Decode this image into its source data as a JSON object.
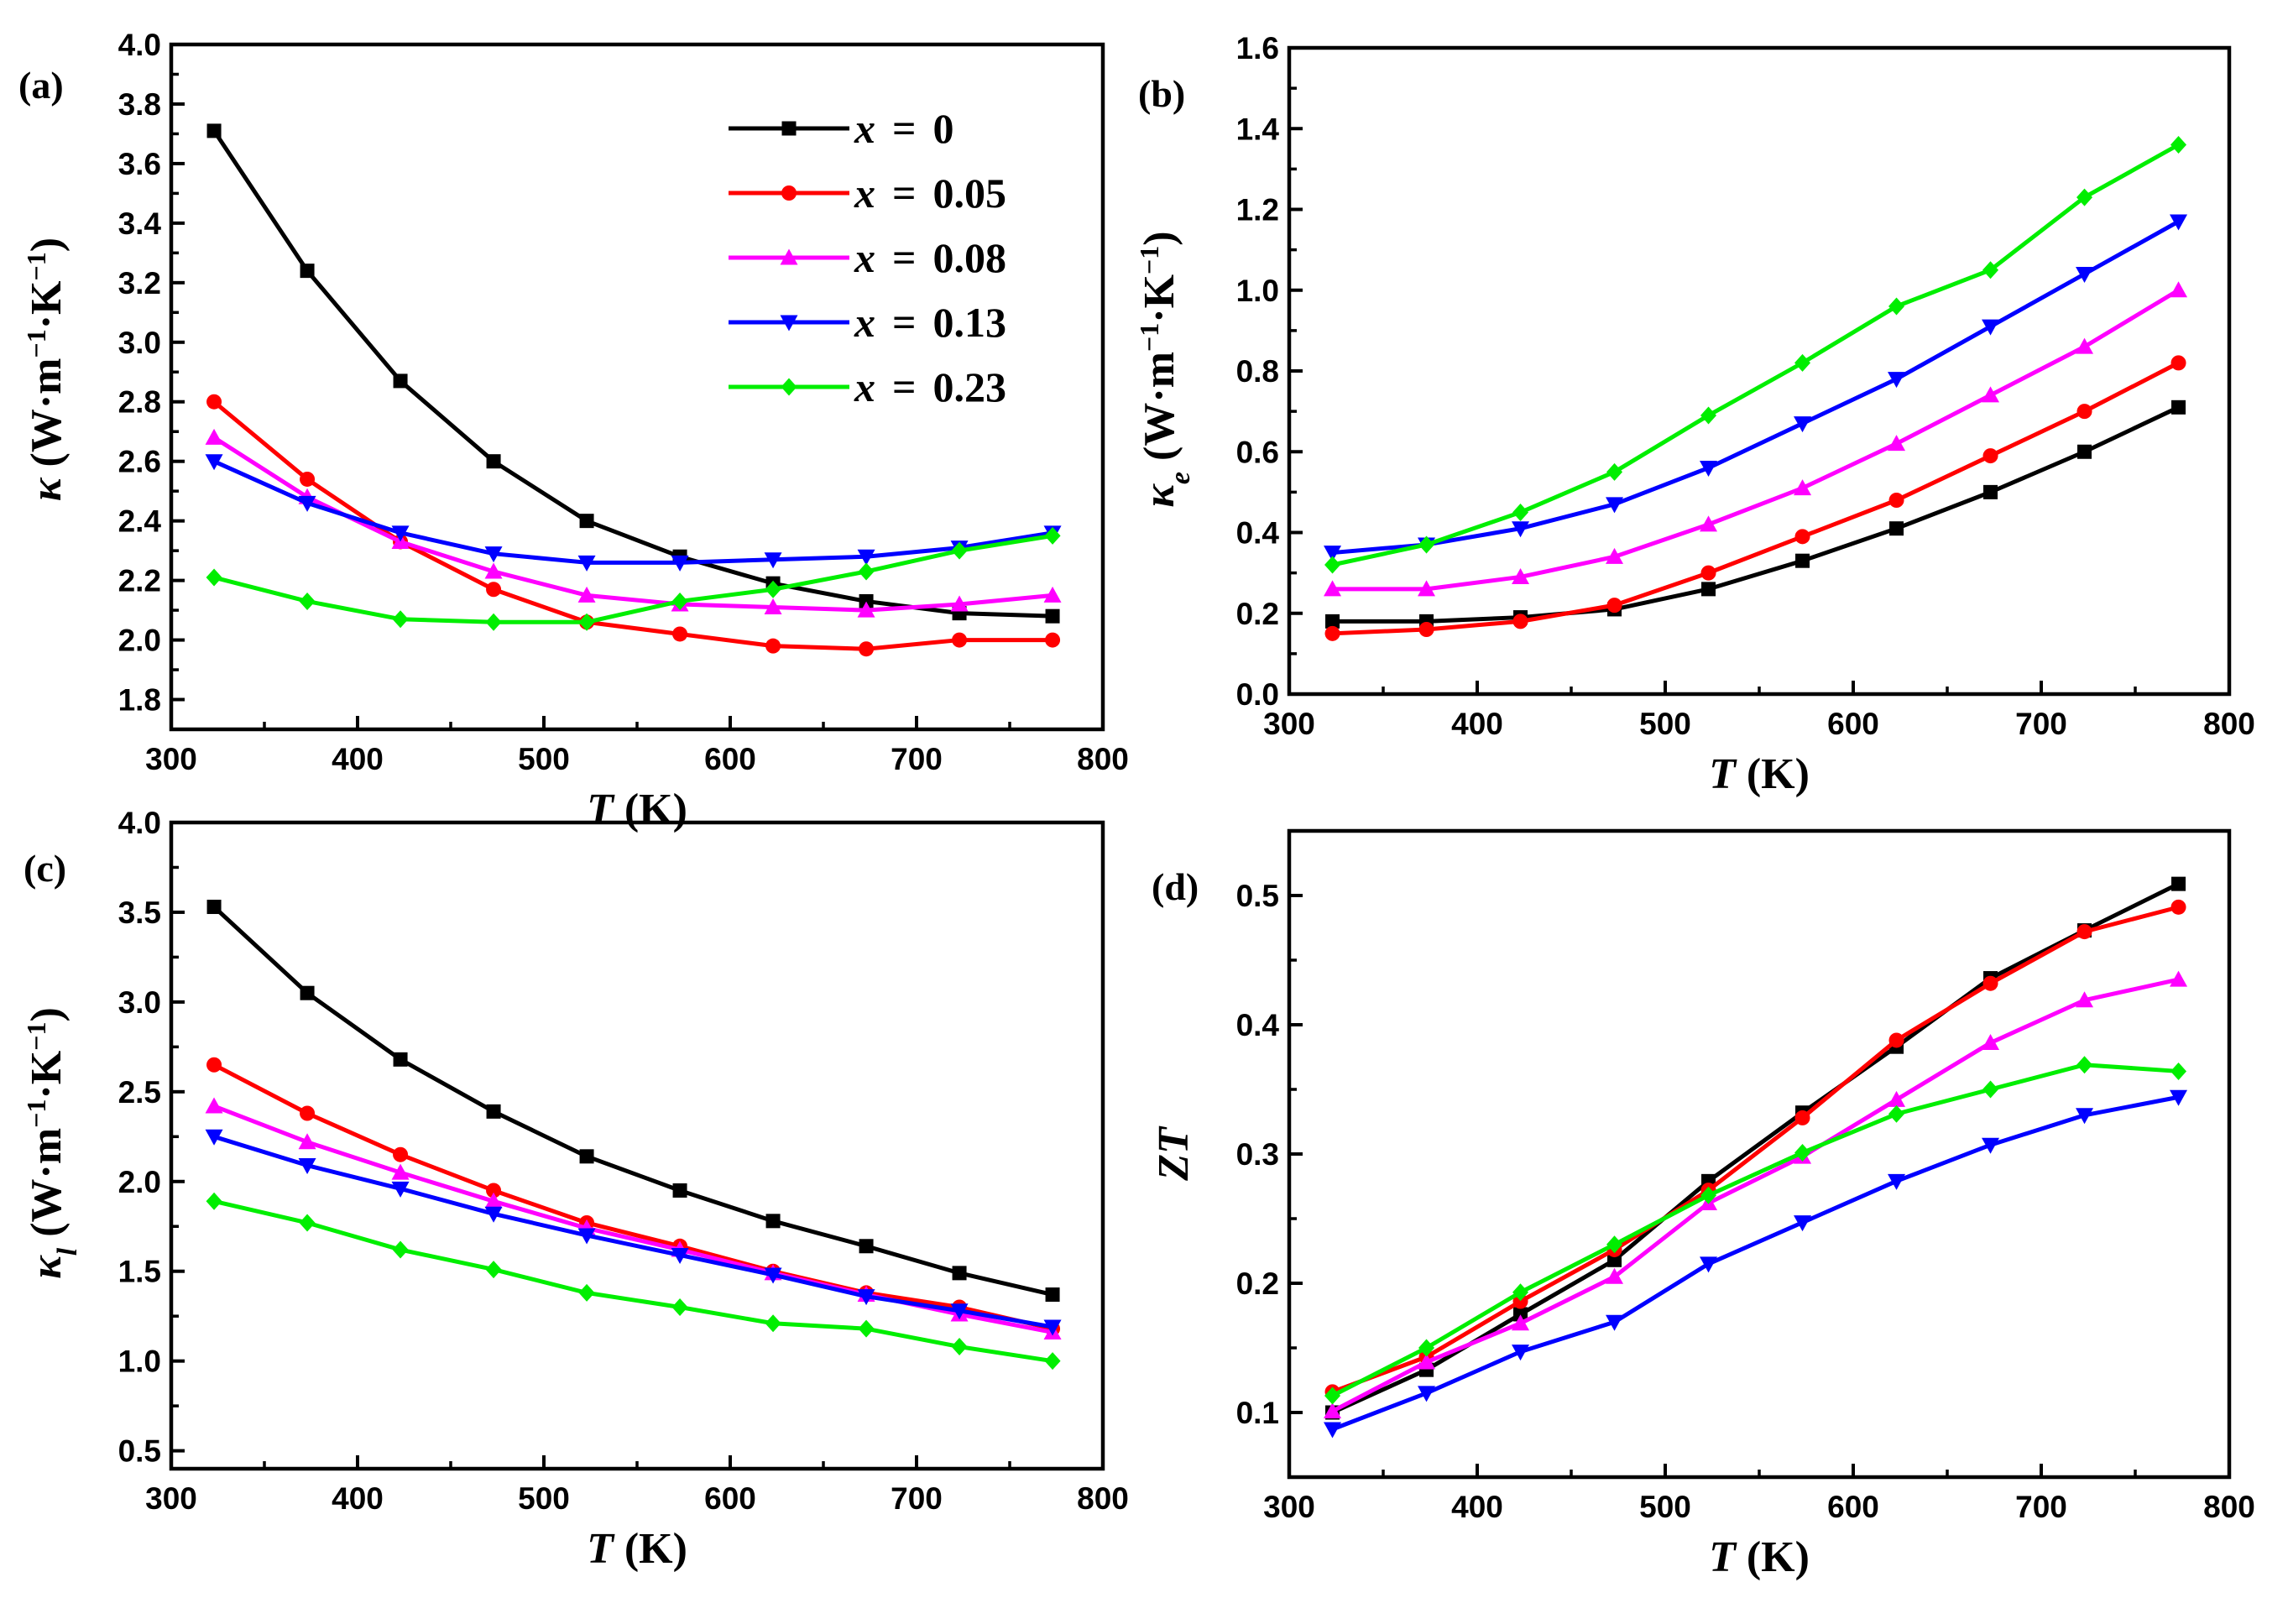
{
  "legend": {
    "entries": [
      {
        "var": "x",
        "eq": "=",
        "val": "0",
        "color": "#000000",
        "marker": "square"
      },
      {
        "var": "x",
        "eq": "=",
        "val": "0.05",
        "color": "#ff0000",
        "marker": "circle"
      },
      {
        "var": "x",
        "eq": "=",
        "val": "0.08",
        "color": "#ff00ff",
        "marker": "triangle-up"
      },
      {
        "var": "x",
        "eq": "=",
        "val": "0.13",
        "color": "#0000ff",
        "marker": "triangle-down"
      },
      {
        "var": "x",
        "eq": "=",
        "val": "0.23",
        "color": "#00ee00",
        "marker": "diamond"
      }
    ]
  },
  "chart_data": [
    {
      "panel": "(a)",
      "type": "line",
      "xlabel": {
        "italic": "T",
        "rest": " (K)"
      },
      "ylabel": {
        "sym": "κ",
        "sub": "",
        "rest": " (W·m",
        "exp1": "−1",
        "mid": "·K",
        "exp2": "−1",
        "close": ")"
      },
      "xlim": [
        300,
        800
      ],
      "ylim": [
        1.7,
        4.0
      ],
      "xticks": [
        300,
        400,
        500,
        600,
        700,
        800
      ],
      "yticks": [
        1.8,
        2.0,
        2.2,
        2.4,
        2.6,
        2.8,
        3.0,
        3.2,
        3.4,
        3.6,
        3.8,
        4.0
      ],
      "xtick_labels": [
        "300",
        "400",
        "500",
        "600",
        "700",
        "800"
      ],
      "ytick_labels": [
        "1.8",
        "2.0",
        "2.2",
        "2.4",
        "2.6",
        "2.8",
        "3.0",
        "3.2",
        "3.4",
        "3.6",
        "3.8",
        "4.0"
      ],
      "x": [
        323,
        373,
        423,
        473,
        523,
        573,
        623,
        673,
        723,
        773
      ],
      "series": [
        {
          "name": "x = 0",
          "color": "#000000",
          "marker": "square",
          "values": [
            3.71,
            3.24,
            2.87,
            2.6,
            2.4,
            2.28,
            2.19,
            2.13,
            2.09,
            2.08
          ]
        },
        {
          "name": "x = 0.05",
          "color": "#ff0000",
          "marker": "circle",
          "values": [
            2.8,
            2.54,
            2.33,
            2.17,
            2.06,
            2.02,
            1.98,
            1.97,
            2.0,
            2.0
          ]
        },
        {
          "name": "x = 0.08",
          "color": "#ff00ff",
          "marker": "triangle-up",
          "values": [
            2.68,
            2.48,
            2.33,
            2.23,
            2.15,
            2.12,
            2.11,
            2.1,
            2.12,
            2.15
          ]
        },
        {
          "name": "x = 0.13",
          "color": "#0000ff",
          "marker": "triangle-down",
          "values": [
            2.6,
            2.46,
            2.36,
            2.29,
            2.26,
            2.26,
            2.27,
            2.28,
            2.31,
            2.36
          ]
        },
        {
          "name": "x = 0.23",
          "color": "#00ee00",
          "marker": "diamond",
          "values": [
            2.21,
            2.13,
            2.07,
            2.06,
            2.06,
            2.13,
            2.17,
            2.23,
            2.3,
            2.35
          ]
        }
      ]
    },
    {
      "panel": "(b)",
      "type": "line",
      "xlabel": {
        "italic": "T",
        "rest": " (K)"
      },
      "ylabel": {
        "sym": "κ",
        "sub": "e",
        "rest": " (W·m",
        "exp1": "−1",
        "mid": "·K",
        "exp2": "−1",
        "close": ")"
      },
      "xlim": [
        300,
        800
      ],
      "ylim": [
        0.0,
        1.6
      ],
      "xticks": [
        300,
        400,
        500,
        600,
        700,
        800
      ],
      "yticks": [
        0.0,
        0.2,
        0.4,
        0.6,
        0.8,
        1.0,
        1.2,
        1.4,
        1.6
      ],
      "xtick_labels": [
        "300",
        "400",
        "500",
        "600",
        "700",
        "800"
      ],
      "ytick_labels": [
        "0.0",
        "0.2",
        "0.4",
        "0.6",
        "0.8",
        "1.0",
        "1.2",
        "1.4",
        "1.6"
      ],
      "x": [
        323,
        373,
        423,
        473,
        523,
        573,
        623,
        673,
        723,
        773
      ],
      "series": [
        {
          "name": "x = 0",
          "color": "#000000",
          "marker": "square",
          "values": [
            0.18,
            0.18,
            0.19,
            0.21,
            0.26,
            0.33,
            0.41,
            0.5,
            0.6,
            0.71
          ]
        },
        {
          "name": "x = 0.05",
          "color": "#ff0000",
          "marker": "circle",
          "values": [
            0.15,
            0.16,
            0.18,
            0.22,
            0.3,
            0.39,
            0.48,
            0.59,
            0.7,
            0.82
          ]
        },
        {
          "name": "x = 0.08",
          "color": "#ff00ff",
          "marker": "triangle-up",
          "values": [
            0.26,
            0.26,
            0.29,
            0.34,
            0.42,
            0.51,
            0.62,
            0.74,
            0.86,
            1.0
          ]
        },
        {
          "name": "x = 0.13",
          "color": "#0000ff",
          "marker": "triangle-down",
          "values": [
            0.35,
            0.37,
            0.41,
            0.47,
            0.56,
            0.67,
            0.78,
            0.91,
            1.04,
            1.17
          ]
        },
        {
          "name": "x = 0.23",
          "color": "#00ee00",
          "marker": "diamond",
          "values": [
            0.32,
            0.37,
            0.45,
            0.55,
            0.69,
            0.82,
            0.96,
            1.05,
            1.23,
            1.36
          ]
        }
      ]
    },
    {
      "panel": "(c)",
      "type": "line",
      "xlabel": {
        "italic": "T",
        "rest": " (K)"
      },
      "ylabel": {
        "sym": "κ",
        "sub": "l",
        "rest": " (W·m",
        "exp1": "−1",
        "mid": "·K",
        "exp2": "−1",
        "close": ")"
      },
      "xlim": [
        300,
        800
      ],
      "ylim": [
        0.4,
        4.0
      ],
      "xticks": [
        300,
        400,
        500,
        600,
        700,
        800
      ],
      "yticks": [
        0.5,
        1.0,
        1.5,
        2.0,
        2.5,
        3.0,
        3.5,
        4.0
      ],
      "xtick_labels": [
        "300",
        "400",
        "500",
        "600",
        "700",
        "800"
      ],
      "ytick_labels": [
        "0.5",
        "1.0",
        "1.5",
        "2.0",
        "2.5",
        "3.0",
        "3.5",
        "4.0"
      ],
      "x": [
        323,
        373,
        423,
        473,
        523,
        573,
        623,
        673,
        723,
        773
      ],
      "series": [
        {
          "name": "x = 0",
          "color": "#000000",
          "marker": "square",
          "values": [
            3.53,
            3.05,
            2.68,
            2.39,
            2.14,
            1.95,
            1.78,
            1.64,
            1.49,
            1.37
          ]
        },
        {
          "name": "x = 0.05",
          "color": "#ff0000",
          "marker": "circle",
          "values": [
            2.65,
            2.38,
            2.15,
            1.95,
            1.77,
            1.64,
            1.5,
            1.38,
            1.3,
            1.18
          ]
        },
        {
          "name": "x = 0.08",
          "color": "#ff00ff",
          "marker": "triangle-up",
          "values": [
            2.42,
            2.22,
            2.05,
            1.89,
            1.74,
            1.62,
            1.49,
            1.37,
            1.26,
            1.16
          ]
        },
        {
          "name": "x = 0.13",
          "color": "#0000ff",
          "marker": "triangle-down",
          "values": [
            2.25,
            2.09,
            1.96,
            1.82,
            1.7,
            1.59,
            1.48,
            1.36,
            1.28,
            1.19
          ]
        },
        {
          "name": "x = 0.23",
          "color": "#00ee00",
          "marker": "diamond",
          "values": [
            1.89,
            1.77,
            1.62,
            1.51,
            1.38,
            1.3,
            1.21,
            1.18,
            1.08,
            1.0
          ]
        }
      ]
    },
    {
      "panel": "(d)",
      "type": "line",
      "xlabel": {
        "italic": "T",
        "rest": " (K)"
      },
      "ylabel": {
        "italic": "ZT"
      },
      "xlim": [
        300,
        800
      ],
      "ylim": [
        0.05,
        0.55
      ],
      "xticks": [
        300,
        400,
        500,
        600,
        700,
        800
      ],
      "yticks": [
        0.1,
        0.2,
        0.3,
        0.4,
        0.5
      ],
      "xtick_labels": [
        "300",
        "400",
        "500",
        "600",
        "700",
        "800"
      ],
      "ytick_labels": [
        "0.1",
        "0.2",
        "0.3",
        "0.4",
        "0.5"
      ],
      "x": [
        323,
        373,
        423,
        473,
        523,
        573,
        623,
        673,
        723,
        773
      ],
      "series": [
        {
          "name": "x = 0",
          "color": "#000000",
          "marker": "square",
          "values": [
            0.1,
            0.133,
            0.176,
            0.218,
            0.279,
            0.332,
            0.383,
            0.436,
            0.473,
            0.509
          ]
        },
        {
          "name": "x = 0.05",
          "color": "#ff0000",
          "marker": "circle",
          "values": [
            0.116,
            0.143,
            0.186,
            0.226,
            0.272,
            0.328,
            0.388,
            0.432,
            0.472,
            0.491
          ]
        },
        {
          "name": "x = 0.08",
          "color": "#ff00ff",
          "marker": "triangle-up",
          "values": [
            0.101,
            0.139,
            0.169,
            0.205,
            0.262,
            0.298,
            0.342,
            0.386,
            0.419,
            0.435
          ]
        },
        {
          "name": "x = 0.13",
          "color": "#0000ff",
          "marker": "triangle-down",
          "values": [
            0.087,
            0.115,
            0.147,
            0.17,
            0.215,
            0.247,
            0.279,
            0.307,
            0.33,
            0.344
          ]
        },
        {
          "name": "x = 0.23",
          "color": "#00ee00",
          "marker": "diamond",
          "values": [
            0.113,
            0.15,
            0.193,
            0.23,
            0.268,
            0.301,
            0.331,
            0.35,
            0.369,
            0.364
          ]
        }
      ]
    }
  ]
}
